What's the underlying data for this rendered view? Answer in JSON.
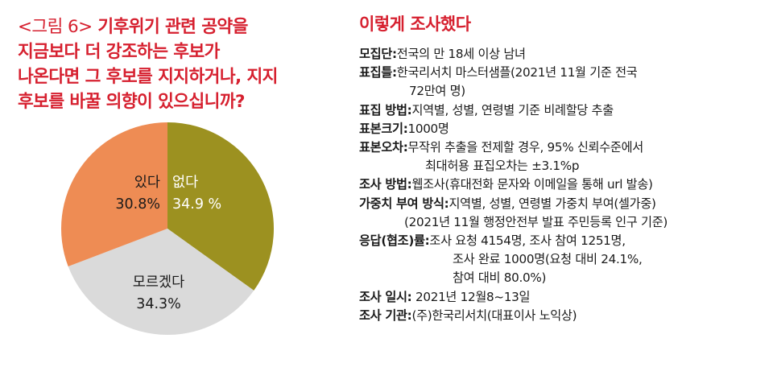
{
  "question": {
    "figure_label": "<그림 6>",
    "lines": [
      " 기후위기 관련 공약을",
      "지금보다 더 강조하는 후보가",
      "나온다면 그 후보를 지지하거나, 지지",
      "후보를 바꿀 의향이 있으십니까?"
    ]
  },
  "chart_data": {
    "type": "pie",
    "title": "",
    "slices": [
      {
        "label": "없다",
        "value": 34.9,
        "value_text": "34.9 %",
        "color": "#9c9120"
      },
      {
        "label": "모르겠다",
        "value": 34.3,
        "value_text": "34.3%",
        "color": "#dadada"
      },
      {
        "label": "있다",
        "value": 30.8,
        "value_text": "30.8%",
        "color": "#ee8c54"
      }
    ]
  },
  "method": {
    "title": "이렇게 조사했다",
    "items": [
      {
        "key": "모집단:",
        "value": "전국의 만 18세 이상 남녀",
        "cont": ""
      },
      {
        "key": "표집틀:",
        "value": "한국리서치 마스터샘플(2021년 11월 기준 전국",
        "cont": "72만여 명)"
      },
      {
        "key": "표집 방법:",
        "value": "지역별, 성별, 연령별 기준 비례할당 추출",
        "cont": ""
      },
      {
        "key": "표본크기:",
        "value": "1000명",
        "cont": ""
      },
      {
        "key": "표본오차:",
        "value": "무작위 추출을 전제할 경우, 95% 신뢰수준에서",
        "cont": "최대허용 표집오차는 ±3.1%p"
      },
      {
        "key": "조사 방법:",
        "value": "웹조사(휴대전화 문자와 이메일을 통해 url 발송)",
        "cont": ""
      },
      {
        "key": "가중치 부여 방식:",
        "value": "지역별, 성별, 연령별 가중치 부여(셀가중)",
        "cont": "(2021년 11월 행정안전부 발표 주민등록 인구 기준)"
      },
      {
        "key": "응답(협조)률:",
        "value": "조사 요청 4154명, 조사 참여 1251명,",
        "cont": "조사 완료 1000명(요청 대비 24.1%,",
        "cont2": "참여 대비 80.0%)"
      },
      {
        "key": "조사 일시:",
        "value": " 2021년 12월8~13일",
        "cont": ""
      },
      {
        "key": "조사 기관:",
        "value": "(주)한국리서치(대표이사 노익상)",
        "cont": ""
      }
    ]
  }
}
